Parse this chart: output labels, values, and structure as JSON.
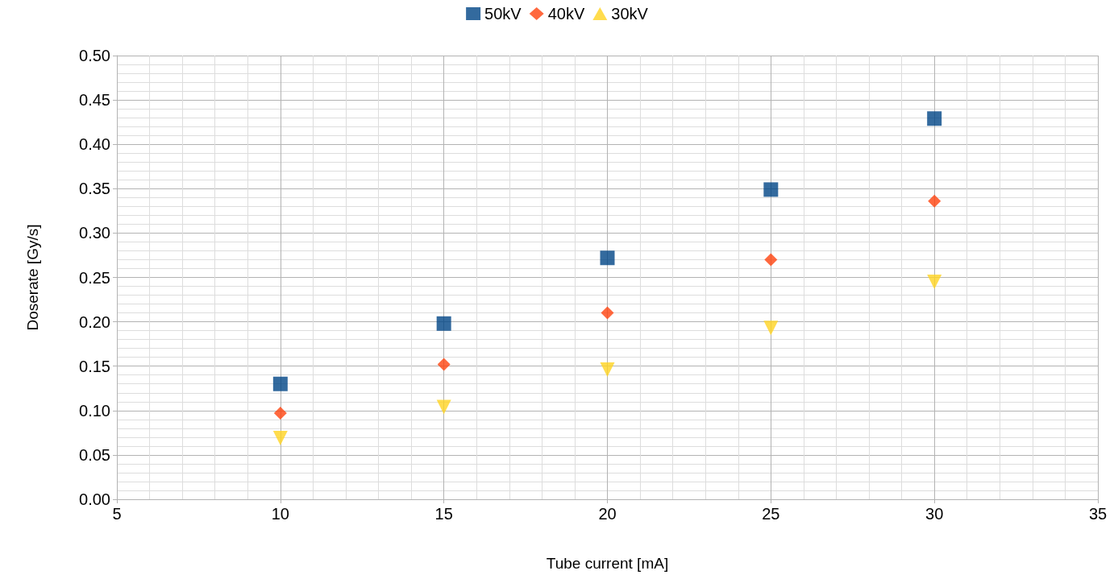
{
  "chart_data": {
    "type": "scatter",
    "xlabel": "Tube current [mA]",
    "ylabel": "Doserate [Gy/s]",
    "x": [
      10,
      15,
      20,
      25,
      30
    ],
    "series": [
      {
        "name": "50kV",
        "color": "#004586",
        "marker": "square",
        "values": [
          0.13,
          0.198,
          0.272,
          0.349,
          0.429
        ]
      },
      {
        "name": "40kV",
        "color": "#ff420e",
        "marker": "diamond",
        "values": [
          0.097,
          0.152,
          0.21,
          0.27,
          0.336
        ]
      },
      {
        "name": "30kV",
        "color": "#ffd320",
        "marker": "triangle",
        "values": [
          0.069,
          0.104,
          0.146,
          0.193,
          0.245
        ]
      }
    ],
    "xlim": [
      5,
      35
    ],
    "xticks": [
      5,
      10,
      15,
      20,
      25,
      30,
      35
    ],
    "ylim": [
      0,
      0.5
    ],
    "yticks": [
      {
        "value": 0,
        "label": "0.00"
      },
      {
        "value": 0.05,
        "label": "0.05"
      },
      {
        "value": 0.1,
        "label": "0.10"
      },
      {
        "value": 0.15,
        "label": "0.15"
      },
      {
        "value": 0.2,
        "label": "0.20"
      },
      {
        "value": 0.25,
        "label": "0.25"
      },
      {
        "value": 0.3,
        "label": "0.30"
      },
      {
        "value": 0.35,
        "label": "0.35"
      },
      {
        "value": 0.4,
        "label": "0.40"
      },
      {
        "value": 0.45,
        "label": "0.45"
      },
      {
        "value": 0.5,
        "label": "0.50"
      }
    ],
    "grid": true,
    "legend": "top"
  }
}
